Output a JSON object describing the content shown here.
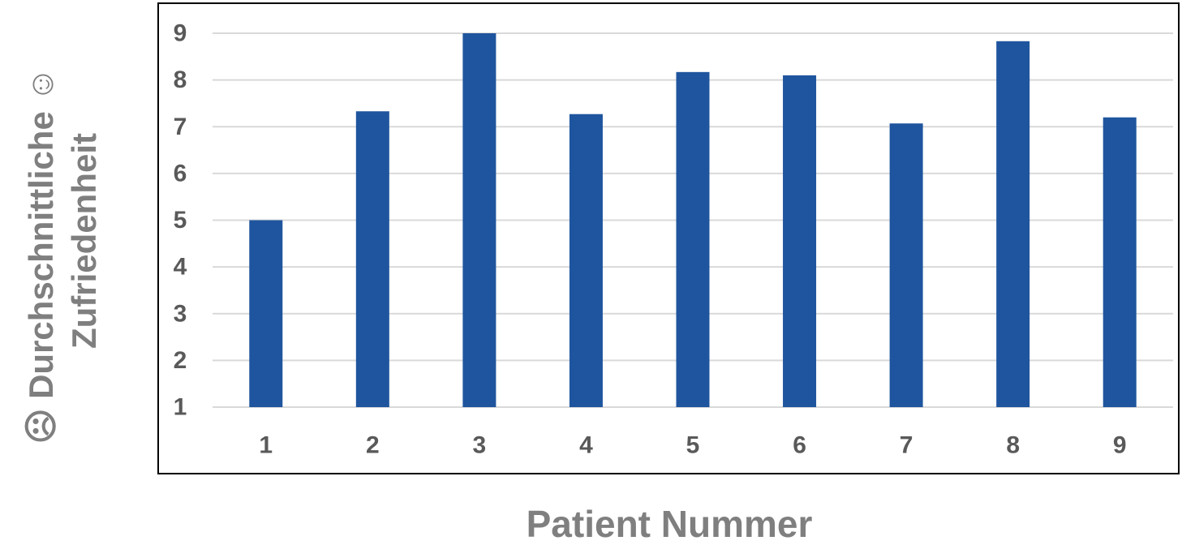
{
  "chart_data": {
    "type": "bar",
    "categories": [
      "1",
      "2",
      "3",
      "4",
      "5",
      "6",
      "7",
      "8",
      "9"
    ],
    "values": [
      5.0,
      7.33,
      9.0,
      7.27,
      8.17,
      8.1,
      7.07,
      8.83,
      7.2
    ],
    "ylim": [
      1,
      9
    ],
    "yticks": [
      "1",
      "2",
      "3",
      "4",
      "5",
      "6",
      "7",
      "8",
      "9"
    ],
    "xlabel": "Patient Nummer",
    "ylabel_line1": "☹ Durchschnittliche ☺",
    "ylabel_line2": "Zufriedenheit",
    "grid": true,
    "bar_color": "#1f559e",
    "grid_color": "#d9d9d9"
  }
}
